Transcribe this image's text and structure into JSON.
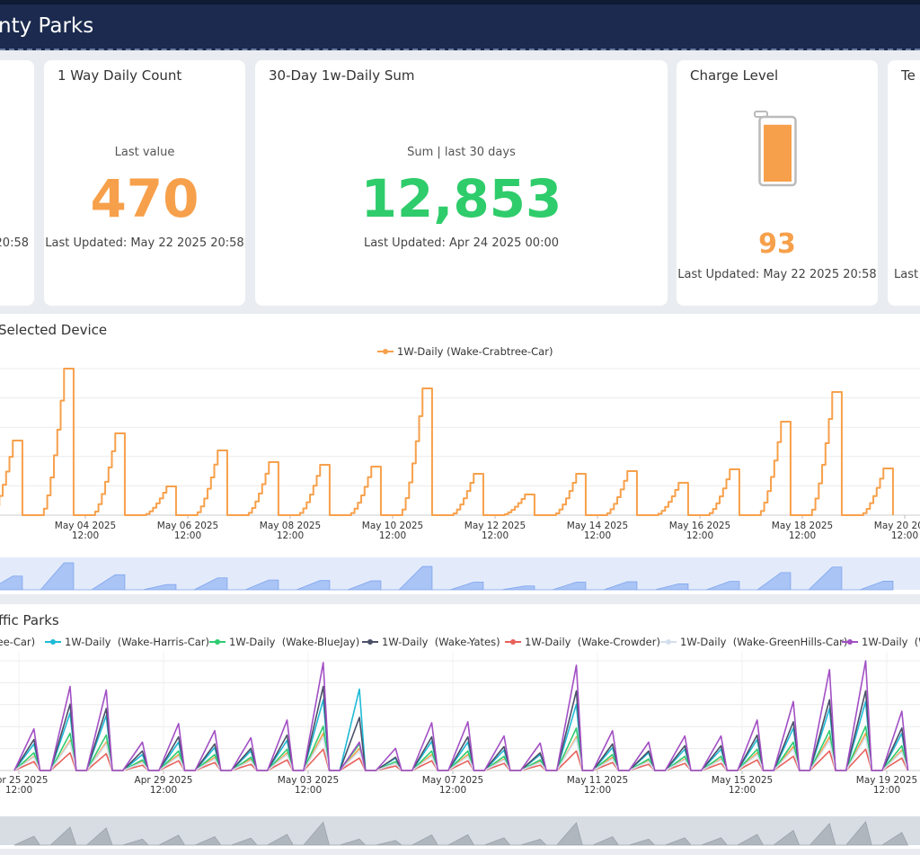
{
  "header": {
    "title": "nty Parks"
  },
  "cards": [
    {
      "updated": "20:58"
    },
    {
      "title": "1 Way Daily Count",
      "caption": "Last value",
      "value": 470,
      "updated": "Last Updated: May 22 2025 20:58",
      "color": "#f7a04b"
    },
    {
      "title": "30-Day 1w-Daily Sum",
      "caption": "Sum | last 30 days",
      "value": 12853,
      "value_label": "12,853",
      "updated": "Last Updated: Apr 24 2025 00:00",
      "color": "#2fcc6b"
    },
    {
      "title": "Charge Level",
      "value": 93,
      "updated": "Last Updated: May 22 2025 20:58",
      "color": "#f7a04b"
    },
    {
      "title": "Te",
      "updated": "Last"
    }
  ],
  "chart_data": [
    {
      "type": "line",
      "title": "Selected Device",
      "grid": true,
      "x": [
        "2025-05-02",
        "2025-05-03",
        "2025-05-04",
        "2025-05-05",
        "2025-05-06",
        "2025-05-07",
        "2025-05-08",
        "2025-05-09",
        "2025-05-10",
        "2025-05-11",
        "2025-05-12",
        "2025-05-13",
        "2025-05-14",
        "2025-05-15",
        "2025-05-16",
        "2025-05-17",
        "2025-05-18",
        "2025-05-19"
      ],
      "xticks": [
        {
          "value": "2025-05-02T12:00",
          "label": "25"
        },
        {
          "value": "2025-05-04T12:00",
          "label": "May 04 2025 12:00"
        },
        {
          "value": "2025-05-06T12:00",
          "label": "May 06 2025 12:00"
        },
        {
          "value": "2025-05-08T12:00",
          "label": "May 08 2025 12:00"
        },
        {
          "value": "2025-05-10T12:00",
          "label": "May 10 2025 12:00"
        },
        {
          "value": "2025-05-12T12:00",
          "label": "May 12 2025 12:00"
        },
        {
          "value": "2025-05-14T12:00",
          "label": "May 14 2025 12:00"
        },
        {
          "value": "2025-05-16T12:00",
          "label": "May 16 2025 12:00"
        },
        {
          "value": "2025-05-18T12:00",
          "label": "May 18 2025 12:00"
        },
        {
          "value": "2025-05-20T12:00",
          "label": "May 20 2025 12:00"
        }
      ],
      "series": [
        {
          "name": "1W-Daily (Wake-Crabtree-Car)",
          "color": "#f7a04b",
          "values": [
            249,
            489,
            273,
            96,
            216,
            177,
            168,
            162,
            423,
            138,
            69,
            138,
            147,
            108,
            153,
            312,
            411,
            156
          ]
        }
      ]
    },
    {
      "type": "line",
      "title": "ffic Parks",
      "grid": true,
      "x": [
        "2025-04-25",
        "2025-04-26",
        "2025-04-27",
        "2025-04-28",
        "2025-04-29",
        "2025-04-30",
        "2025-05-01",
        "2025-05-02",
        "2025-05-03",
        "2025-05-04",
        "2025-05-05",
        "2025-05-06",
        "2025-05-07",
        "2025-05-08",
        "2025-05-09",
        "2025-05-10",
        "2025-05-11",
        "2025-05-12",
        "2025-05-13",
        "2025-05-14",
        "2025-05-15",
        "2025-05-16",
        "2025-05-17",
        "2025-05-18",
        "2025-05-19"
      ],
      "xticks": [
        {
          "value": "2025-04-25T12:00",
          "label": "Apr 25 2025 12:00"
        },
        {
          "value": "2025-04-29T12:00",
          "label": "Apr 29 2025 12:00"
        },
        {
          "value": "2025-05-03T12:00",
          "label": "May 03 2025 12:00"
        },
        {
          "value": "2025-05-07T12:00",
          "label": "May 07 2025 12:00"
        },
        {
          "value": "2025-05-11T12:00",
          "label": "May 11 2025 12:00"
        },
        {
          "value": "2025-05-15T12:00",
          "label": "May 15 2025 12:00"
        },
        {
          "value": "2025-05-19T12:00",
          "label": "May 19 2025 12:00"
        }
      ],
      "series": [
        {
          "name": "1W-Daily  (Wake-Crabtree-Car)",
          "color": "#f7a04b",
          "values": [
            16,
            34,
            32,
            11,
            18,
            15,
            13,
            20,
            42,
            25,
            8,
            18,
            18,
            13,
            10,
            38,
            15,
            11,
            13,
            13,
            20,
            27,
            38,
            42,
            23
          ]
        },
        {
          "name": "1W-Daily  (Wake-Harris-Car)",
          "color": "#1fbad6",
          "values": [
            30,
            65,
            62,
            18,
            32,
            26,
            22,
            34,
            80,
            92,
            14,
            33,
            32,
            23,
            18,
            75,
            26,
            20,
            24,
            24,
            35,
            48,
            70,
            78,
            42
          ]
        },
        {
          "name": "1W-Daily  (Wake-BlueJay)",
          "color": "#2ecc71",
          "values": [
            20,
            42,
            40,
            12,
            22,
            18,
            15,
            24,
            50,
            30,
            10,
            22,
            22,
            16,
            12,
            48,
            18,
            13,
            16,
            16,
            24,
            32,
            45,
            50,
            28
          ]
        },
        {
          "name": "1W-Daily  (Wake-Yates)",
          "color": "#4a5068",
          "values": [
            35,
            75,
            70,
            22,
            38,
            30,
            25,
            40,
            95,
            60,
            15,
            38,
            38,
            27,
            20,
            90,
            30,
            22,
            28,
            28,
            40,
            55,
            80,
            90,
            48
          ]
        },
        {
          "name": "1W-Daily  (Wake-Crowder)",
          "color": "#e8605a",
          "values": [
            10,
            20,
            19,
            6,
            11,
            9,
            7,
            12,
            24,
            14,
            5,
            11,
            11,
            8,
            6,
            22,
            9,
            7,
            8,
            8,
            12,
            16,
            22,
            24,
            14
          ]
        },
        {
          "name": "1W-Daily  (Wake-GreenHills-Car)",
          "color": "#d4dfee",
          "values": [
            15,
            32,
            30,
            9,
            16,
            13,
            11,
            18,
            38,
            22,
            8,
            16,
            16,
            12,
            9,
            36,
            13,
            10,
            12,
            12,
            18,
            24,
            34,
            38,
            21
          ]
        },
        {
          "name": "1W-Daily  (W",
          "color": "#a24fc4",
          "values": [
            47,
            95,
            91,
            32,
            53,
            45,
            37,
            57,
            122,
            32,
            25,
            54,
            55,
            39,
            31,
            119,
            45,
            32,
            39,
            39,
            57,
            78,
            114,
            124,
            67
          ]
        }
      ]
    }
  ]
}
